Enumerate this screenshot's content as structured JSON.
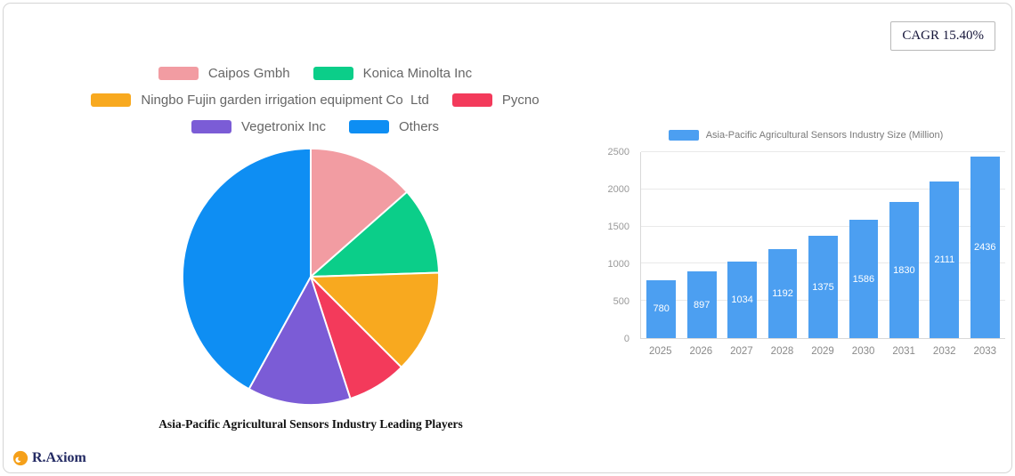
{
  "badge": {
    "cagr_label": "CAGR 15.40%"
  },
  "logo": {
    "text": "R.Axiom",
    "icon": "axiom-logo-icon",
    "icon_color": "#f5a01a"
  },
  "chart_data": [
    {
      "type": "pie",
      "title": "Asia-Pacific Agricultural Sensors Industry Leading Players",
      "legend_position": "top",
      "slices": [
        {
          "label": "Caipos Gmbh",
          "value": 13.5,
          "color": "#f29ca2"
        },
        {
          "label": "Konica Minolta Inc",
          "value": 11,
          "color": "#0bce89"
        },
        {
          "label": "Ningbo Fujin garden irrigation equipment Co  Ltd",
          "value": 13,
          "color": "#f8a91f"
        },
        {
          "label": "Pycno",
          "value": 7.5,
          "color": "#f33a5b"
        },
        {
          "label": "Vegetronix Inc",
          "value": 13,
          "color": "#7b5cd6"
        },
        {
          "label": "Others",
          "value": 42,
          "color": "#0e8ef3"
        }
      ]
    },
    {
      "type": "bar",
      "legend": "Asia-Pacific Agricultural Sensors Industry Size (Million)",
      "bar_color": "#4c9ff1",
      "categories": [
        "2025",
        "2026",
        "2027",
        "2028",
        "2029",
        "2030",
        "2031",
        "2032",
        "2033"
      ],
      "values": [
        780,
        897,
        1034,
        1192,
        1375,
        1586,
        1830,
        2111,
        2436
      ],
      "ylim": [
        0,
        2500
      ],
      "yticks": [
        0,
        500,
        1000,
        1500,
        2000,
        2500
      ],
      "grid": true,
      "legend_position": "top",
      "value_labels": "inside-white"
    }
  ]
}
